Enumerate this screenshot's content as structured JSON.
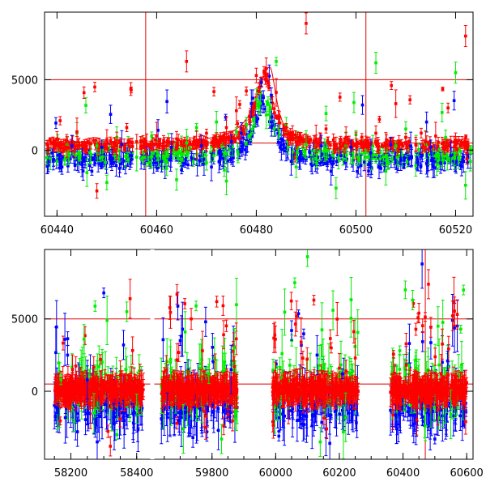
{
  "chart_data": [
    {
      "type": "scatter",
      "panel": "top",
      "title": "",
      "xlabel": "",
      "ylabel": "",
      "xlim": [
        60437.5,
        60523.5
      ],
      "ylim": [
        -4700,
        9800
      ],
      "x_ticks": [
        60440,
        60460,
        60480,
        60500,
        60520
      ],
      "x_tick_labels": [
        "60440",
        "60460",
        "60480",
        "60500",
        "60520"
      ],
      "y_ticks": [
        0,
        5000
      ],
      "y_tick_labels": [
        "0",
        "5000"
      ],
      "grid": false,
      "legend": "none",
      "hlines": [
        {
          "y": 5000,
          "color": "#e00000"
        },
        {
          "y": 500,
          "color": "#e00000"
        }
      ],
      "vlines": [
        {
          "x": 60457.8,
          "color": "#e00000"
        },
        {
          "x": 60502.0,
          "color": "#e00000"
        }
      ],
      "model_curve": {
        "color": "#e00000",
        "baseline": 500,
        "peak_x": 60482.7,
        "peak_y": 5900
      },
      "series": [
        {
          "color": "#0000ff",
          "points": [
            [
              60439,
              -200
            ],
            [
              60441,
              -1200
            ],
            [
              60443,
              300
            ],
            [
              60445,
              -900
            ],
            [
              60447,
              -1500
            ],
            [
              60449,
              200
            ],
            [
              60451,
              -700
            ],
            [
              60453,
              400
            ],
            [
              60455,
              -400
            ],
            [
              60458,
              -300
            ],
            [
              60461,
              -800
            ],
            [
              60463,
              200
            ],
            [
              60465,
              -1400
            ],
            [
              60467,
              -600
            ],
            [
              60469,
              300
            ],
            [
              60471,
              -1200
            ],
            [
              60473,
              -300
            ],
            [
              60475,
              600
            ],
            [
              60477,
              1200
            ],
            [
              60479,
              3300
            ],
            [
              60481,
              4800
            ],
            [
              60483,
              3900
            ],
            [
              60485,
              800
            ],
            [
              60487,
              -800
            ],
            [
              60489,
              -300
            ],
            [
              60491,
              -1000
            ],
            [
              60493,
              300
            ],
            [
              60495,
              -1500
            ],
            [
              60497,
              -400
            ],
            [
              60499,
              200
            ],
            [
              60501,
              -1100
            ],
            [
              60503,
              -200
            ],
            [
              60505,
              -1300
            ],
            [
              60507,
              400
            ],
            [
              60509,
              -700
            ],
            [
              60511,
              300
            ],
            [
              60513,
              -1200
            ],
            [
              60515,
              200
            ],
            [
              60517,
              -900
            ],
            [
              60519,
              -400
            ],
            [
              60521,
              -1100
            ]
          ]
        },
        {
          "color": "#00ee00",
          "points": [
            [
              60440,
              -800
            ],
            [
              60442,
              400
            ],
            [
              60444,
              1200
            ],
            [
              60446,
              -1600
            ],
            [
              60448,
              300
            ],
            [
              60450,
              -2300
            ],
            [
              60452,
              900
            ],
            [
              60456,
              -500
            ],
            [
              60459,
              1000
            ],
            [
              60462,
              -1300
            ],
            [
              60464,
              -2100
            ],
            [
              60466,
              500
            ],
            [
              60468,
              1600
            ],
            [
              60470,
              -900
            ],
            [
              60472,
              2000
            ],
            [
              60474,
              -2200
            ],
            [
              60476,
              1300
            ],
            [
              60478,
              1800
            ],
            [
              60480,
              3600
            ],
            [
              60482,
              2500
            ],
            [
              60484,
              6300
            ],
            [
              60486,
              1800
            ],
            [
              60488,
              -1200
            ],
            [
              60490,
              400
            ],
            [
              60492,
              -600
            ],
            [
              60494,
              2600
            ],
            [
              60496,
              -2700
            ],
            [
              60498,
              300
            ],
            [
              60500,
              1100
            ],
            [
              60502,
              -500
            ],
            [
              60504,
              6200
            ],
            [
              60506,
              -1500
            ],
            [
              60508,
              300
            ],
            [
              60510,
              1500
            ],
            [
              60512,
              -1100
            ],
            [
              60514,
              400
            ],
            [
              60516,
              -400
            ],
            [
              60518,
              900
            ],
            [
              60520,
              5500
            ],
            [
              60522,
              -2500
            ]
          ]
        },
        {
          "color": "#ff0000",
          "points": [
            [
              60438,
              400
            ],
            [
              60440,
              800
            ],
            [
              60442,
              200
            ],
            [
              60444,
              1300
            ],
            [
              60446,
              500
            ],
            [
              60448,
              -2900
            ],
            [
              60450,
              700
            ],
            [
              60452,
              300
            ],
            [
              60454,
              1600
            ],
            [
              60456,
              600
            ],
            [
              60458,
              400
            ],
            [
              60460,
              1000
            ],
            [
              60462,
              300
            ],
            [
              60464,
              800
            ],
            [
              60466,
              6300
            ],
            [
              60468,
              400
            ],
            [
              60470,
              1200
            ],
            [
              60472,
              700
            ],
            [
              60474,
              1600
            ],
            [
              60476,
              2800
            ],
            [
              60478,
              4200
            ],
            [
              60480,
              5300
            ],
            [
              60482,
              5800
            ],
            [
              60484,
              4100
            ],
            [
              60486,
              1600
            ],
            [
              60488,
              600
            ],
            [
              60490,
              9000
            ],
            [
              60492,
              800
            ],
            [
              60494,
              1500
            ],
            [
              60496,
              400
            ],
            [
              60498,
              900
            ],
            [
              60500,
              300
            ],
            [
              60502,
              700
            ],
            [
              60504,
              1200
            ],
            [
              60506,
              500
            ],
            [
              60508,
              3300
            ],
            [
              60510,
              900
            ],
            [
              60512,
              400
            ],
            [
              60514,
              600
            ],
            [
              60516,
              1000
            ],
            [
              60518,
              300
            ],
            [
              60520,
              700
            ],
            [
              60522,
              8100
            ]
          ]
        }
      ]
    },
    {
      "type": "scatter",
      "panel": "bottom",
      "title": "",
      "xlabel": "",
      "ylabel": "",
      "x_tick_labels": [
        "58200",
        "58400",
        "59800",
        "60000",
        "60200",
        "60400",
        "60600"
      ],
      "y_ticks": [
        0,
        5000
      ],
      "y_tick_labels": [
        "0",
        "5000"
      ],
      "ylim": [
        -4700,
        9800
      ],
      "grid": false,
      "legend": "none",
      "hlines": [
        {
          "y": 5000,
          "color": "#e00000"
        },
        {
          "y": 500,
          "color": "#e00000"
        }
      ],
      "segments": [
        {
          "xlim": [
            58120,
            58440
          ],
          "ticks": [
            58200,
            58400
          ],
          "tick_labels": [
            "58200",
            "58400"
          ],
          "data_range": [
            58150,
            58420
          ]
        },
        {
          "xlim": [
            59620,
            60620
          ],
          "ticks": [
            59800,
            60000,
            60200,
            60400,
            60600
          ],
          "tick_labels": [
            "59800",
            "60000",
            "60200",
            "60400",
            "60600"
          ],
          "data_ranges": [
            [
              59640,
              59880
            ],
            [
              59990,
              60260
            ],
            [
              60360,
              60600
            ]
          ]
        }
      ],
      "vline": {
        "x": 60470,
        "color": "#e00000"
      },
      "series": [
        {
          "color": "#0000ff",
          "points": [
            [
              58160,
              -1200
            ],
            [
              58190,
              2500
            ],
            [
              58220,
              -2800
            ],
            [
              58250,
              800
            ],
            [
              58280,
              -3500
            ],
            [
              58300,
              6800
            ],
            [
              58330,
              -1500
            ],
            [
              58360,
              3200
            ],
            [
              58390,
              -2200
            ],
            [
              59660,
              -1800
            ],
            [
              59700,
              3500
            ],
            [
              59740,
              -3200
            ],
            [
              59780,
              4800
            ],
            [
              59820,
              -2700
            ],
            [
              59860,
              1500
            ],
            [
              60010,
              -3100
            ],
            [
              60050,
              4200
            ],
            [
              60090,
              -2300
            ],
            [
              60130,
              2500
            ],
            [
              60170,
              -3600
            ],
            [
              60210,
              1200
            ],
            [
              60240,
              -2000
            ],
            [
              60380,
              -2600
            ],
            [
              60420,
              3300
            ],
            [
              60460,
              8800
            ],
            [
              60500,
              -3300
            ],
            [
              60540,
              2100
            ],
            [
              60580,
              -1700
            ]
          ]
        },
        {
          "color": "#00ee00",
          "points": [
            [
              58170,
              800
            ],
            [
              58210,
              -2100
            ],
            [
              58240,
              3600
            ],
            [
              58270,
              -1500
            ],
            [
              58310,
              4900
            ],
            [
              58340,
              -3000
            ],
            [
              58370,
              5500
            ],
            [
              58400,
              -1200
            ],
            [
              59670,
              2200
            ],
            [
              59710,
              -2600
            ],
            [
              59750,
              5900
            ],
            [
              59790,
              1200
            ],
            [
              59830,
              -3300
            ],
            [
              59870,
              3000
            ],
            [
              60020,
              2600
            ],
            [
              60060,
              7500
            ],
            [
              60100,
              9300
            ],
            [
              60140,
              -3500
            ],
            [
              60180,
              5600
            ],
            [
              60220,
              -1800
            ],
            [
              60390,
              2800
            ],
            [
              60430,
              6300
            ],
            [
              60470,
              -2400
            ],
            [
              60510,
              4500
            ],
            [
              60550,
              -1600
            ],
            [
              60590,
              7000
            ]
          ]
        },
        {
          "color": "#ff0000",
          "points": [
            [
              58155,
              600
            ],
            [
              58180,
              -400
            ],
            [
              58205,
              1500
            ],
            [
              58230,
              300
            ],
            [
              58260,
              -900
            ],
            [
              58290,
              2200
            ],
            [
              58320,
              -3800
            ],
            [
              58350,
              1100
            ],
            [
              58380,
              6400
            ],
            [
              58410,
              200
            ],
            [
              59650,
              1300
            ],
            [
              59690,
              6700
            ],
            [
              59730,
              -600
            ],
            [
              59770,
              2800
            ],
            [
              59810,
              900
            ],
            [
              59850,
              -1600
            ],
            [
              59870,
              1700
            ],
            [
              60000,
              1000
            ],
            [
              60040,
              -900
            ],
            [
              60080,
              3400
            ],
            [
              60120,
              6300
            ],
            [
              60160,
              -2600
            ],
            [
              60200,
              1600
            ],
            [
              60250,
              2300
            ],
            [
              60370,
              900
            ],
            [
              60410,
              1800
            ],
            [
              60450,
              5400
            ],
            [
              60480,
              7400
            ],
            [
              60520,
              1200
            ],
            [
              60560,
              6200
            ],
            [
              60600,
              600
            ]
          ]
        }
      ]
    }
  ]
}
